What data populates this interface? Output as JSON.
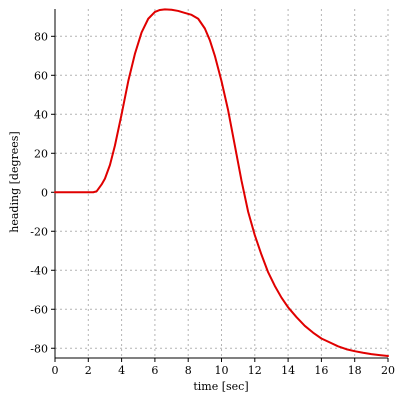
{
  "chart_data": {
    "type": "line",
    "title": "",
    "xlabel": "time [sec]",
    "ylabel": "heading [degrees]",
    "xlim": [
      0,
      20
    ],
    "ylim": [
      -85,
      94
    ],
    "xticks": [
      0,
      2,
      4,
      6,
      8,
      10,
      12,
      14,
      16,
      18,
      20
    ],
    "yticks": [
      -80,
      -60,
      -40,
      -20,
      0,
      20,
      40,
      60,
      80
    ],
    "grid": true,
    "series": [
      {
        "color": "#e00000",
        "x": [
          0,
          0.5,
          1,
          1.5,
          2,
          2.3,
          2.5,
          2.8,
          3.0,
          3.3,
          3.6,
          4.0,
          4.4,
          4.8,
          5.2,
          5.6,
          6.0,
          6.3,
          6.6,
          7.0,
          7.4,
          7.8,
          8.2,
          8.6,
          9.0,
          9.3,
          9.6,
          10.0,
          10.4,
          10.8,
          11.2,
          11.6,
          12.0,
          12.4,
          12.8,
          13.2,
          13.6,
          14.0,
          14.5,
          15.0,
          15.5,
          16.0,
          16.5,
          17.0,
          17.5,
          18.0,
          18.5,
          19.0,
          19.5,
          20.0
        ],
        "y": [
          0,
          0,
          0,
          0,
          0,
          0,
          0.5,
          4,
          7,
          14,
          24,
          40,
          57,
          71,
          82,
          89,
          92.5,
          93.5,
          93.8,
          93.6,
          93,
          92,
          91,
          89,
          84,
          78,
          70,
          57,
          42,
          24,
          6,
          -10,
          -22,
          -32,
          -41,
          -48,
          -54,
          -59,
          -64,
          -68.5,
          -72,
          -75,
          -77,
          -79,
          -80.5,
          -81.5,
          -82.3,
          -83,
          -83.5,
          -84
        ]
      }
    ]
  }
}
